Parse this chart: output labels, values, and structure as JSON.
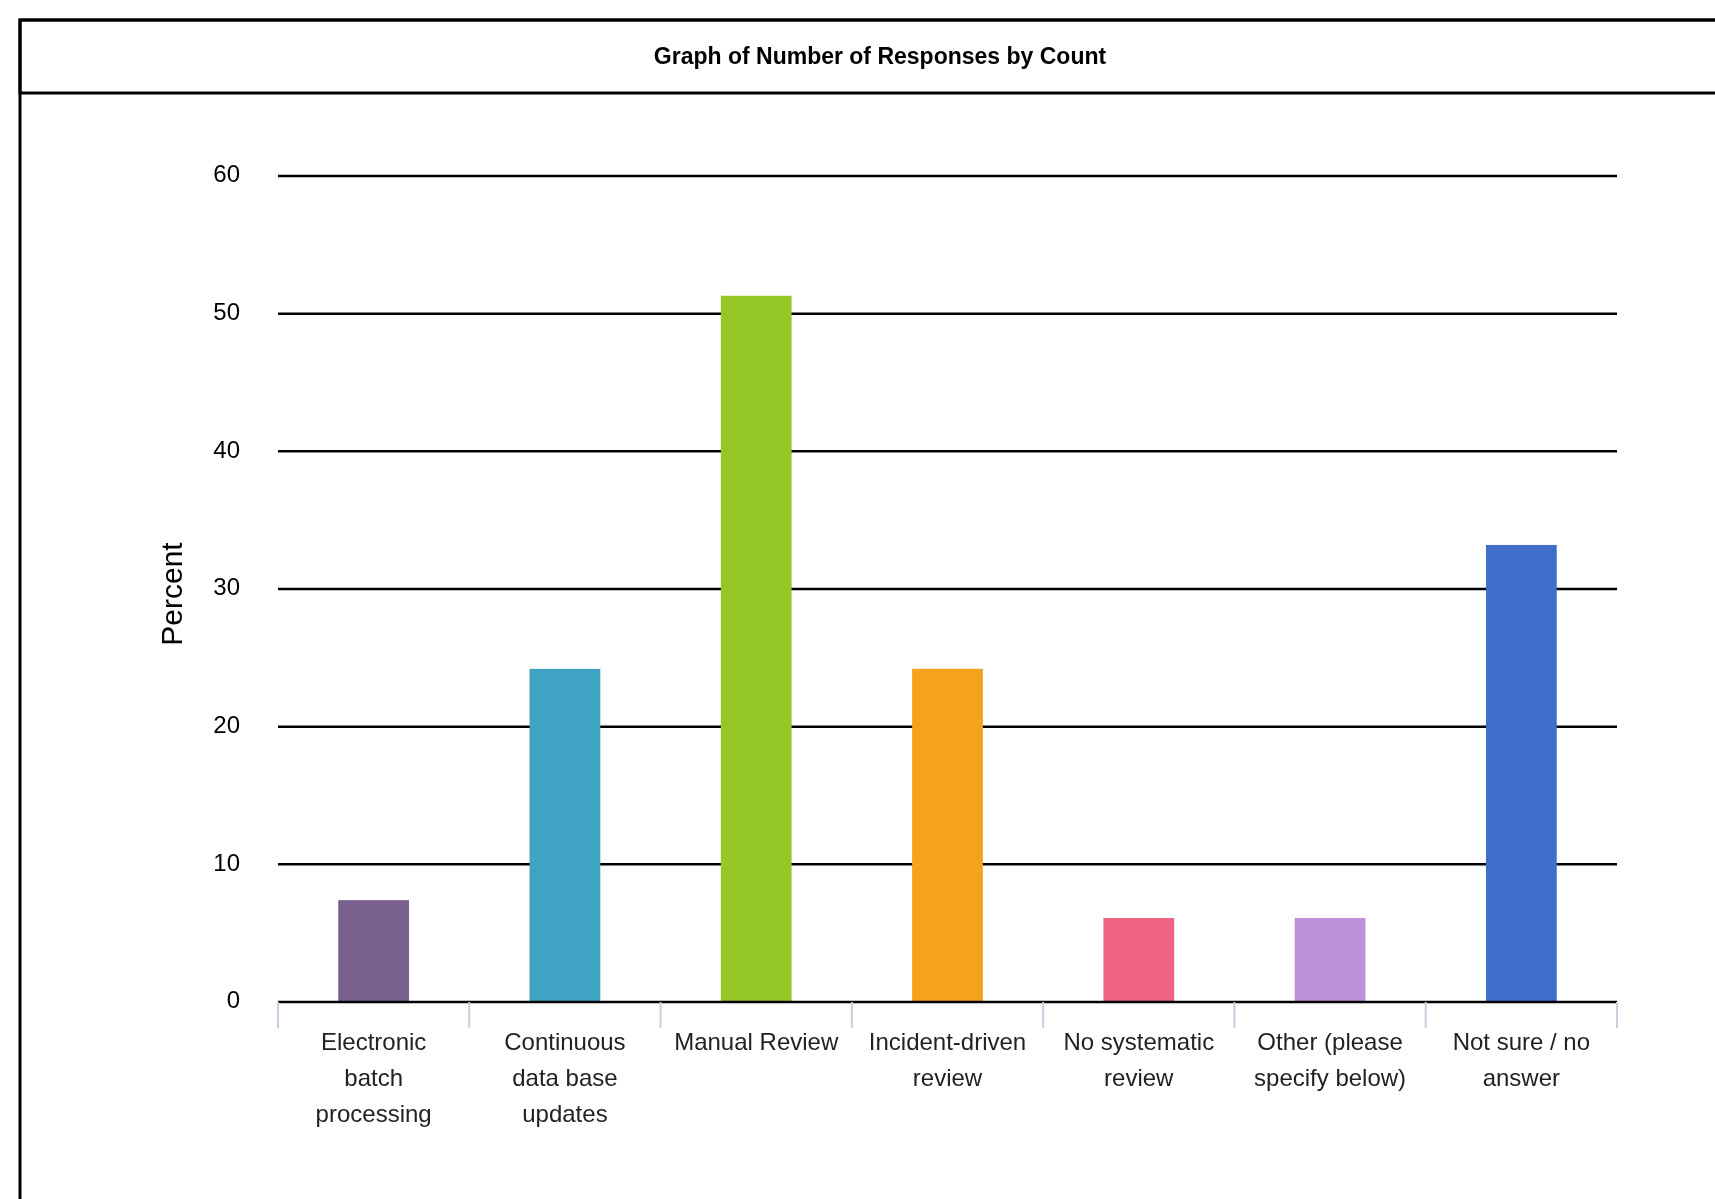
{
  "chart_data": {
    "type": "bar",
    "title": "Graph of Number of Responses by Count",
    "ylabel": "Percent",
    "categories": [
      "Electronic batch processing",
      "Continuous data base updates",
      "Manual Review",
      "Incident-driven review",
      "No systematic review",
      "Other (please specify below)",
      "Not sure / no answer"
    ],
    "values": [
      7.4,
      24.2,
      51.3,
      24.2,
      6.1,
      6.1,
      33.2
    ],
    "colors": [
      "#7b6190",
      "#3fa3c3",
      "#96c729",
      "#f4a31a",
      "#ef6383",
      "#bf90da",
      "#3f6ecb"
    ],
    "ylim": [
      0,
      60
    ],
    "yticks": [
      0,
      10,
      20,
      30,
      40,
      50,
      60
    ],
    "grid": "y"
  }
}
